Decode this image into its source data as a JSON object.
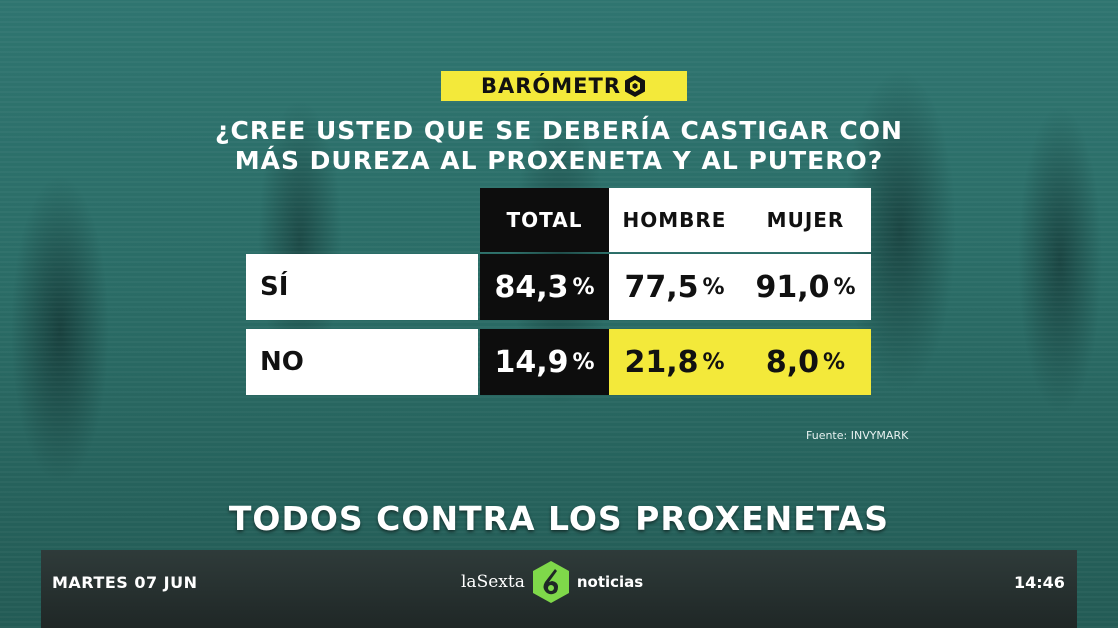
{
  "badge": {
    "label": "BARÓMETR"
  },
  "question": {
    "line1": "¿CREE USTED QUE SE DEBERÍA CASTIGAR CON",
    "line2": "MÁS DUREZA AL PROXENETA Y AL PUTERO?"
  },
  "table": {
    "headers": [
      "TOTAL",
      "HOMBRE",
      "MUJER"
    ],
    "rows": [
      {
        "label": "SÍ",
        "total": "84,3",
        "hombre": "77,5",
        "mujer": "91,0"
      },
      {
        "label": "NO",
        "total": "14,9",
        "hombre": "21,8",
        "mujer": "8,0"
      }
    ],
    "percent_sign": "%"
  },
  "source": "Fuente: INVYMARK",
  "headline": "TODOS CONTRA LOS PROXENETAS",
  "ticker": {
    "date": "MARTES 07 JUN",
    "channel": "laSexta",
    "program": "noticias",
    "time": "14:46"
  },
  "colors": {
    "accent_yellow": "#f3e93a",
    "brand_green": "#7fd84a",
    "black": "#0d0d0d"
  },
  "icons": {
    "badge_icon": "hexagon-cube-icon",
    "channel_icon": "lasexta-six-icon"
  }
}
